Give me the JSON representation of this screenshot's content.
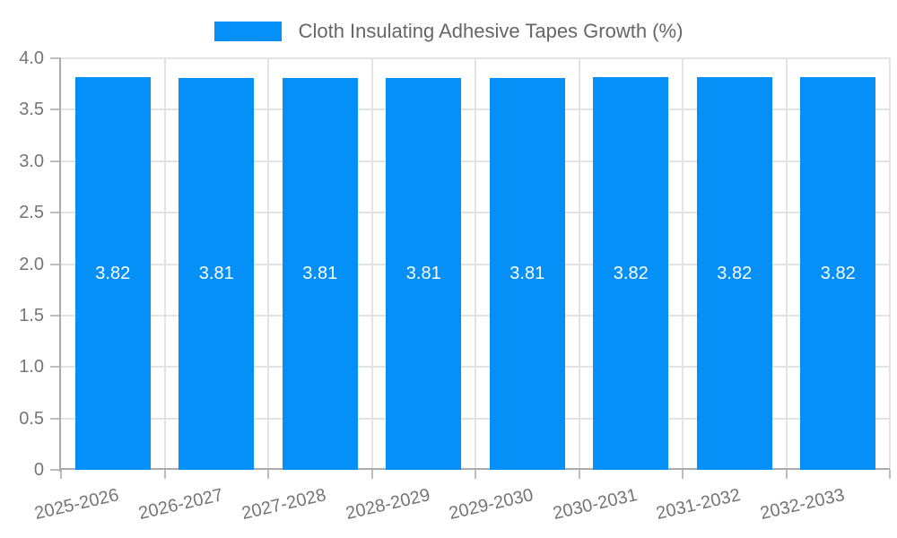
{
  "chart_data": {
    "type": "bar",
    "legend": "Cloth Insulating Adhesive Tapes Growth (%)",
    "categories": [
      "2025-2026",
      "2026-2027",
      "2027-2028",
      "2028-2029",
      "2029-2030",
      "2030-2031",
      "2031-2032",
      "2032-2033"
    ],
    "values": [
      3.82,
      3.81,
      3.81,
      3.81,
      3.81,
      3.82,
      3.82,
      3.82
    ],
    "bar_labels": [
      "3.82",
      "3.81",
      "3.81",
      "3.81",
      "3.81",
      "3.82",
      "3.82",
      "3.82"
    ],
    "xlabel": "",
    "ylabel": "",
    "ylim": [
      0,
      4
    ],
    "yticks": [
      {
        "v": 4,
        "label": "4.0"
      },
      {
        "v": 3.5,
        "label": "3.5"
      },
      {
        "v": 3,
        "label": "3.0"
      },
      {
        "v": 2.5,
        "label": "2.5"
      },
      {
        "v": 2,
        "label": "2.0"
      },
      {
        "v": 1.5,
        "label": "1.5"
      },
      {
        "v": 1,
        "label": "1.0"
      },
      {
        "v": 0.5,
        "label": "0.5"
      },
      {
        "v": 0,
        "label": "0"
      }
    ],
    "grid": true,
    "legend_position": "top-center",
    "colors": {
      "bar": "#0590f8",
      "grid": "#e3e3e3",
      "axis": "#ababab",
      "tick": "#bdbdbd",
      "tick_text": "#757575",
      "legend_text": "#666666",
      "bar_label_text": "#ffffff",
      "background": "#ffffff"
    }
  }
}
